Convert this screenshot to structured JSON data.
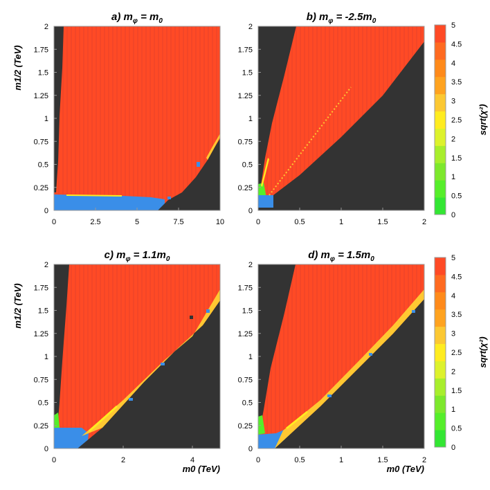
{
  "colors": {
    "excluded": "#333333",
    "scale": [
      "#33e633",
      "#55ee2a",
      "#7de82c",
      "#a8ee2c",
      "#ddf22c",
      "#ffec20",
      "#fcc832",
      "#ffa31f",
      "#ff8a1a",
      "#ff6a20",
      "#ff4a25"
    ],
    "low_chi2": "#3a8ee8",
    "frame": "#9a9a9a"
  },
  "colorbar": {
    "label": "sqrt(χ²)",
    "ticks": [
      "0",
      "0.5",
      "1",
      "1.5",
      "2",
      "2.5",
      "3",
      "3.5",
      "4",
      "4.5",
      "5"
    ]
  },
  "chart_data": [
    {
      "id": "a",
      "type": "heatmap",
      "title": "a) mφ = m0",
      "title_parts": {
        "prefix": "a) m",
        "sub": "φ",
        "mid": " = m",
        "sub2": "0",
        "suffix": ""
      },
      "xlabel": "",
      "ylabel": "m1/2 (TeV)",
      "xlim": [
        0,
        10
      ],
      "ylim": [
        0,
        2
      ],
      "xticks": [
        "0",
        "2.5",
        "5",
        "7.5",
        "10"
      ],
      "yticks": [
        "0",
        "0.25",
        "0.5",
        "0.75",
        "1",
        "1.25",
        "1.5",
        "1.75",
        "2"
      ],
      "regions": {
        "left_excluded_boundary": [
          [
            0.4,
            2.0
          ],
          [
            0.35,
            1.5
          ],
          [
            0.25,
            1.0
          ],
          [
            0.3,
            0.6
          ]
        ],
        "bottom_blue_band": [
          [
            0,
            0.18
          ],
          [
            4,
            0.16
          ],
          [
            5,
            0.14
          ],
          [
            6.5,
            0.12
          ]
        ],
        "right_excluded_boundary": [
          [
            6.0,
            0.12
          ],
          [
            7.0,
            0.2
          ],
          [
            8.0,
            0.35
          ],
          [
            9.0,
            0.55
          ],
          [
            9.6,
            0.72
          ],
          [
            10,
            0.8
          ]
        ]
      }
    },
    {
      "id": "b",
      "type": "heatmap",
      "title": "b) mφ = -2.5m0",
      "title_parts": {
        "prefix": "b) m",
        "sub": "φ",
        "mid": " = -2.5m",
        "sub2": "0",
        "suffix": ""
      },
      "xlabel": "",
      "ylabel": "",
      "xlim": [
        0,
        2
      ],
      "ylim": [
        0,
        2
      ],
      "xticks": [
        "0",
        "0.5",
        "1",
        "1.5",
        "2"
      ],
      "yticks": [
        "0",
        "0.25",
        "0.5",
        "0.75",
        "1",
        "1.25",
        "1.5",
        "1.75",
        "2"
      ],
      "regions": {
        "left_excluded_boundary": [
          [
            0.45,
            2.0
          ],
          [
            0.3,
            1.5
          ],
          [
            0.12,
            0.8
          ],
          [
            0.02,
            0.3
          ]
        ],
        "right_excluded_boundary": [
          [
            0.1,
            0.15
          ],
          [
            0.6,
            0.6
          ],
          [
            1.2,
            1.15
          ],
          [
            1.95,
            1.85
          ]
        ],
        "diagonal_line": [
          [
            0.1,
            0.15
          ],
          [
            1.1,
            1.35
          ]
        ]
      }
    },
    {
      "id": "c",
      "type": "heatmap",
      "title": "c) mφ = 1.1m0",
      "title_parts": {
        "prefix": "c) m",
        "sub": "φ",
        "mid": " = 1.1m",
        "sub2": "0",
        "suffix": ""
      },
      "xlabel": "m0 (TeV)",
      "ylabel": "m1/2 (TeV)",
      "xlim": [
        0,
        4.8
      ],
      "ylim": [
        0,
        2
      ],
      "xticks": [
        "0",
        "2",
        "4"
      ],
      "yticks": [
        "0",
        "0.25",
        "0.5",
        "0.75",
        "1",
        "1.25",
        "1.5",
        "1.75",
        "2"
      ],
      "regions": {
        "left_excluded_boundary": [
          [
            0.45,
            2.0
          ],
          [
            0.35,
            1.5
          ],
          [
            0.15,
            0.8
          ],
          [
            0.1,
            0.35
          ]
        ],
        "bottom_blue_band": [
          [
            0,
            0.15
          ],
          [
            0.5,
            0.12
          ],
          [
            1.0,
            0.08
          ]
        ],
        "right_excluded_boundary": [
          [
            0.6,
            0.02
          ],
          [
            1.5,
            0.4
          ],
          [
            2.5,
            0.75
          ],
          [
            3.5,
            1.1
          ],
          [
            4.2,
            1.4
          ],
          [
            4.8,
            1.62
          ]
        ]
      }
    },
    {
      "id": "d",
      "type": "heatmap",
      "title": "d) mφ = 1.5m0",
      "title_parts": {
        "prefix": "d) m",
        "sub": "φ",
        "mid": " = 1.5m",
        "sub2": "0",
        "suffix": ""
      },
      "xlabel": "m0 (TeV)",
      "ylabel": "",
      "xlim": [
        0,
        2
      ],
      "ylim": [
        0,
        2
      ],
      "xticks": [
        "0",
        "0.5",
        "1",
        "1.5",
        "2"
      ],
      "yticks": [
        "0",
        "0.25",
        "0.5",
        "0.75",
        "1",
        "1.25",
        "1.5",
        "1.75",
        "2"
      ],
      "regions": {
        "left_excluded_boundary": [
          [
            0.45,
            2.0
          ],
          [
            0.32,
            1.5
          ],
          [
            0.12,
            0.8
          ],
          [
            0.05,
            0.3
          ]
        ],
        "bottom_blue_band": [
          [
            0,
            0.12
          ],
          [
            0.2,
            0.08
          ],
          [
            0.35,
            0.05
          ]
        ],
        "right_excluded_boundary": [
          [
            0.25,
            0.02
          ],
          [
            0.7,
            0.45
          ],
          [
            1.2,
            0.85
          ],
          [
            1.6,
            1.2
          ],
          [
            1.95,
            1.62
          ]
        ]
      }
    }
  ]
}
